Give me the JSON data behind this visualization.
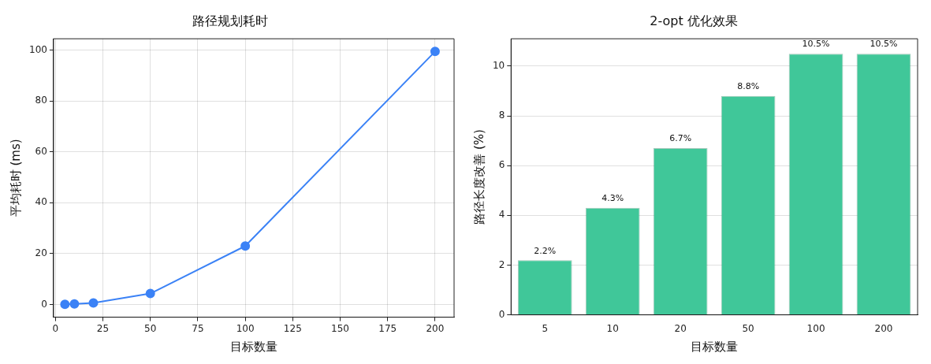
{
  "chart_data": [
    {
      "type": "line",
      "title": "路径规划耗时",
      "xlabel": "目标数量",
      "ylabel": "平均耗时 (ms)",
      "x": [
        5,
        10,
        20,
        50,
        100,
        200
      ],
      "series": [
        {
          "color": "#3b82f6",
          "values": [
            0.1,
            0.2,
            0.6,
            4.3,
            23,
            99.5
          ]
        }
      ],
      "xlim": [
        -1,
        210
      ],
      "xticks": [
        0,
        25,
        50,
        75,
        100,
        125,
        150,
        175,
        200
      ],
      "ylim": [
        -5,
        104.5
      ],
      "yticks": [
        0,
        20,
        40,
        60,
        80,
        100
      ],
      "grid": true,
      "marker": "circle",
      "line_style": "solid",
      "legend": false
    },
    {
      "type": "bar",
      "title": "2-opt 优化效果",
      "xlabel": "目标数量",
      "ylabel": "路径长度改善 (%)",
      "categories": [
        "5",
        "10",
        "20",
        "50",
        "100",
        "200"
      ],
      "values": [
        2.2,
        4.3,
        6.7,
        8.8,
        10.5,
        10.5
      ],
      "value_labels": [
        "2.2%",
        "4.3%",
        "6.7%",
        "8.8%",
        "10.5%",
        "10.5%"
      ],
      "color": "#40c799",
      "ylim": [
        0,
        11.1
      ],
      "yticks": [
        0,
        2,
        4,
        6,
        8,
        10
      ],
      "grid": true,
      "legend": false
    }
  ]
}
